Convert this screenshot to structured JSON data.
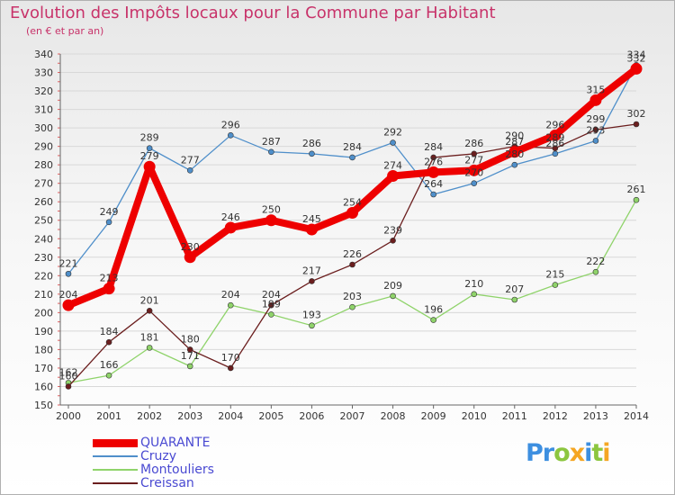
{
  "header": {
    "title": "Evolution des Impôts locaux pour la Commune par Habitant",
    "subtitle": "(en € et par an)"
  },
  "brand": {
    "text": "Proxiti",
    "colors": [
      "#3d8fe0",
      "#8cc63f",
      "#f5a623"
    ]
  },
  "chart_data": {
    "type": "line",
    "title": "Evolution des Impôts locaux pour la Commune par Habitant",
    "subtitle": "(en € et par an)",
    "categories": [
      "2000",
      "2001",
      "2002",
      "2003",
      "2004",
      "2005",
      "2006",
      "2007",
      "2008",
      "2009",
      "2010",
      "2011",
      "2012",
      "2013",
      "2014"
    ],
    "ylim": [
      150,
      340
    ],
    "yticks": [
      150,
      160,
      170,
      180,
      190,
      200,
      210,
      220,
      230,
      240,
      250,
      260,
      270,
      280,
      290,
      300,
      310,
      320,
      330,
      340
    ],
    "grid": true,
    "legend_position": "bottom-left",
    "series": [
      {
        "name": "QUARANTE",
        "color": "#ee0000",
        "thick": true,
        "values": [
          204,
          213,
          279,
          230,
          246,
          250,
          245,
          254,
          274,
          276,
          277,
          287,
          296,
          315,
          332
        ]
      },
      {
        "name": "Cruzy",
        "color": "#4f8fca",
        "thick": false,
        "values": [
          221,
          249,
          289,
          277,
          296,
          287,
          286,
          284,
          292,
          264,
          270,
          280,
          286,
          293,
          334
        ]
      },
      {
        "name": "Montouliers",
        "color": "#8fd36a",
        "thick": false,
        "values": [
          162,
          166,
          181,
          171,
          204,
          199,
          193,
          203,
          209,
          196,
          210,
          207,
          215,
          222,
          261
        ]
      },
      {
        "name": "Creissan",
        "color": "#6b1e1e",
        "thick": false,
        "values": [
          160,
          184,
          201,
          180,
          170,
          204,
          217,
          226,
          239,
          284,
          286,
          290,
          289,
          299,
          302
        ]
      }
    ],
    "data_labels": [
      [
        "204",
        "213",
        "279",
        "230",
        "246",
        "250",
        "245",
        "254",
        "274",
        "276",
        "277",
        "287",
        "296",
        "315",
        "332"
      ],
      [
        "221",
        "249",
        "289",
        "277",
        "296",
        "287",
        "286",
        "284",
        "292",
        "264",
        "270",
        "280",
        "286",
        "293",
        "334"
      ],
      [
        "162",
        "166",
        "181",
        "171",
        "204",
        "199",
        "193",
        "203",
        "209",
        "196",
        "210",
        "207",
        "215",
        "222",
        "261"
      ],
      [
        "160",
        "184",
        "201",
        "180",
        "170",
        "204",
        "217",
        "226",
        "239",
        "284",
        "286",
        "290",
        "289",
        "299",
        "302"
      ]
    ]
  }
}
